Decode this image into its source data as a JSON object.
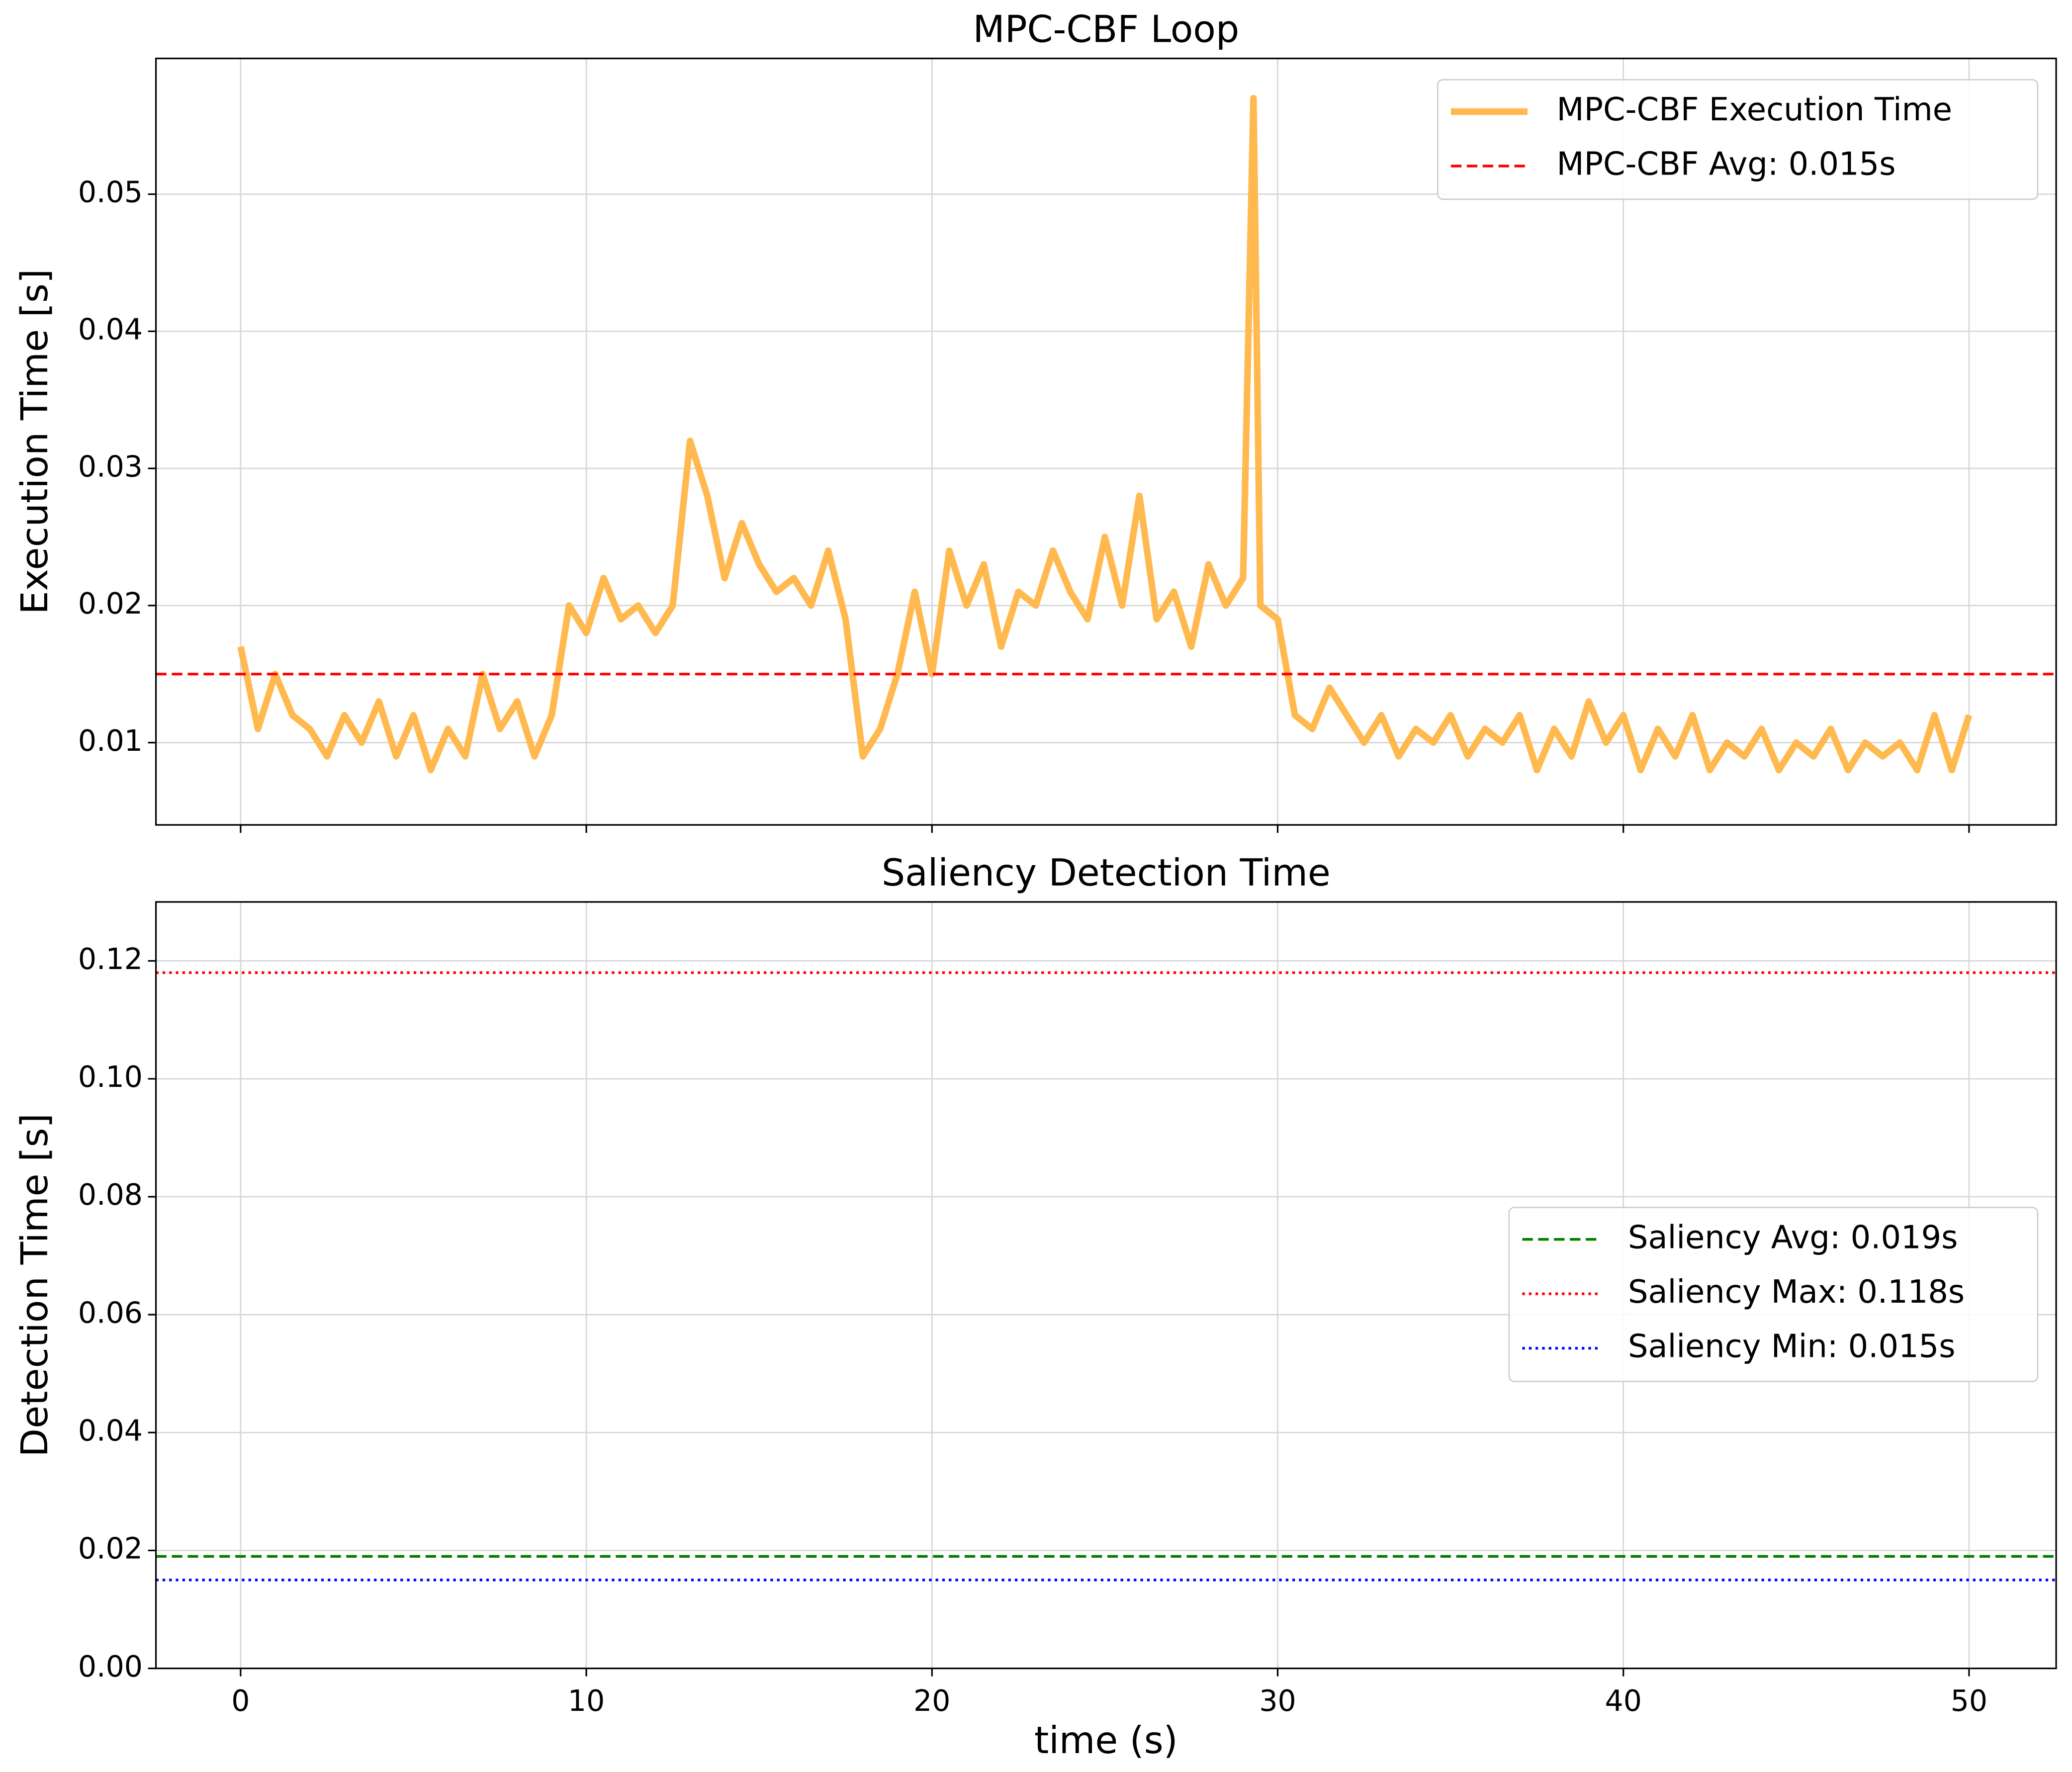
{
  "chart_data": [
    {
      "type": "line",
      "title": "MPC-CBF Loop",
      "ylabel": "Execution Time [s]",
      "grid": true,
      "legend": "upper right",
      "xlim": [
        -2.45,
        52.52
      ],
      "xticks": [
        0,
        10,
        20,
        30,
        40,
        50
      ],
      "show_xticklabels": false,
      "ylim": [
        0.004,
        0.0599
      ],
      "yticks": [
        0.01,
        0.02,
        0.03,
        0.04,
        0.05
      ],
      "x": [
        0,
        0.5,
        1,
        1.5,
        2,
        2.5,
        3,
        3.5,
        4,
        4.5,
        5,
        5.5,
        6,
        6.5,
        7,
        7.5,
        8,
        8.5,
        9,
        9.5,
        10,
        10.5,
        11,
        11.5,
        12,
        12.5,
        13,
        13.5,
        14,
        14.5,
        15,
        15.5,
        16,
        16.5,
        17,
        17.5,
        18,
        18.5,
        19,
        19.5,
        20,
        20.5,
        21,
        21.5,
        22,
        22.5,
        23,
        23.5,
        24,
        24.5,
        25,
        25.5,
        26,
        26.5,
        27,
        27.5,
        28,
        28.5,
        29,
        29.3,
        29.5,
        30,
        30.5,
        31,
        31.5,
        32,
        32.5,
        33,
        33.5,
        34,
        34.5,
        35,
        35.5,
        36,
        36.5,
        37,
        37.5,
        38,
        38.5,
        39,
        39.5,
        40,
        40.5,
        41,
        41.5,
        42,
        42.5,
        43,
        43.5,
        44,
        44.5,
        45,
        45.5,
        46,
        46.5,
        47,
        47.5,
        48,
        48.5,
        49,
        49.5,
        50
      ],
      "series": [
        {
          "name": "MPC-CBF Execution Time",
          "color": "#ffb94f",
          "values": [
            0.017,
            0.011,
            0.015,
            0.012,
            0.011,
            0.009,
            0.012,
            0.01,
            0.013,
            0.009,
            0.012,
            0.008,
            0.011,
            0.009,
            0.015,
            0.011,
            0.013,
            0.009,
            0.012,
            0.02,
            0.018,
            0.022,
            0.019,
            0.02,
            0.018,
            0.02,
            0.032,
            0.028,
            0.022,
            0.026,
            0.023,
            0.021,
            0.022,
            0.02,
            0.024,
            0.019,
            0.009,
            0.011,
            0.015,
            0.021,
            0.015,
            0.024,
            0.02,
            0.023,
            0.017,
            0.021,
            0.02,
            0.024,
            0.021,
            0.019,
            0.025,
            0.02,
            0.028,
            0.019,
            0.021,
            0.017,
            0.023,
            0.02,
            0.022,
            0.057,
            0.02,
            0.019,
            0.012,
            0.011,
            0.014,
            0.012,
            0.01,
            0.012,
            0.009,
            0.011,
            0.01,
            0.012,
            0.009,
            0.011,
            0.01,
            0.012,
            0.008,
            0.011,
            0.009,
            0.013,
            0.01,
            0.012,
            0.008,
            0.011,
            0.009,
            0.012,
            0.008,
            0.01,
            0.009,
            0.011,
            0.008,
            0.01,
            0.009,
            0.011,
            0.008,
            0.01,
            0.009,
            0.01,
            0.008,
            0.012,
            0.008,
            0.012
          ]
        }
      ],
      "hlines": [
        {
          "name": "MPC-CBF Avg: 0.015s",
          "color": "#ff0000",
          "value": 0.015,
          "linestyle": "dashed"
        }
      ]
    },
    {
      "type": "line",
      "title": "Saliency Detection Time",
      "xlabel": "time (s)",
      "ylabel": "Detection Time [s]",
      "grid": true,
      "legend": "center right",
      "xlim": [
        -2.45,
        52.52
      ],
      "xticks": [
        0,
        10,
        20,
        30,
        40,
        50
      ],
      "ylim": [
        0,
        0.13
      ],
      "yticks": [
        {
          "value": 0,
          "label": "0.00"
        },
        {
          "value": 0.02,
          "label": "0.02"
        },
        {
          "value": 0.04,
          "label": "0.04"
        },
        {
          "value": 0.06,
          "label": "0.06"
        },
        {
          "value": 0.08,
          "label": "0.08"
        },
        {
          "value": 0.1,
          "label": "0.10"
        },
        {
          "value": 0.12,
          "label": "0.12"
        }
      ],
      "hlines": [
        {
          "name": "Saliency Avg: 0.019s",
          "color": "#008000",
          "value": 0.019,
          "linestyle": "dashed"
        },
        {
          "name": "Saliency Max: 0.118s",
          "color": "#ff0000",
          "value": 0.118,
          "linestyle": "dotted"
        },
        {
          "name": "Saliency Min: 0.015s",
          "color": "#0000ff",
          "value": 0.015,
          "linestyle": "dotted"
        }
      ]
    }
  ]
}
